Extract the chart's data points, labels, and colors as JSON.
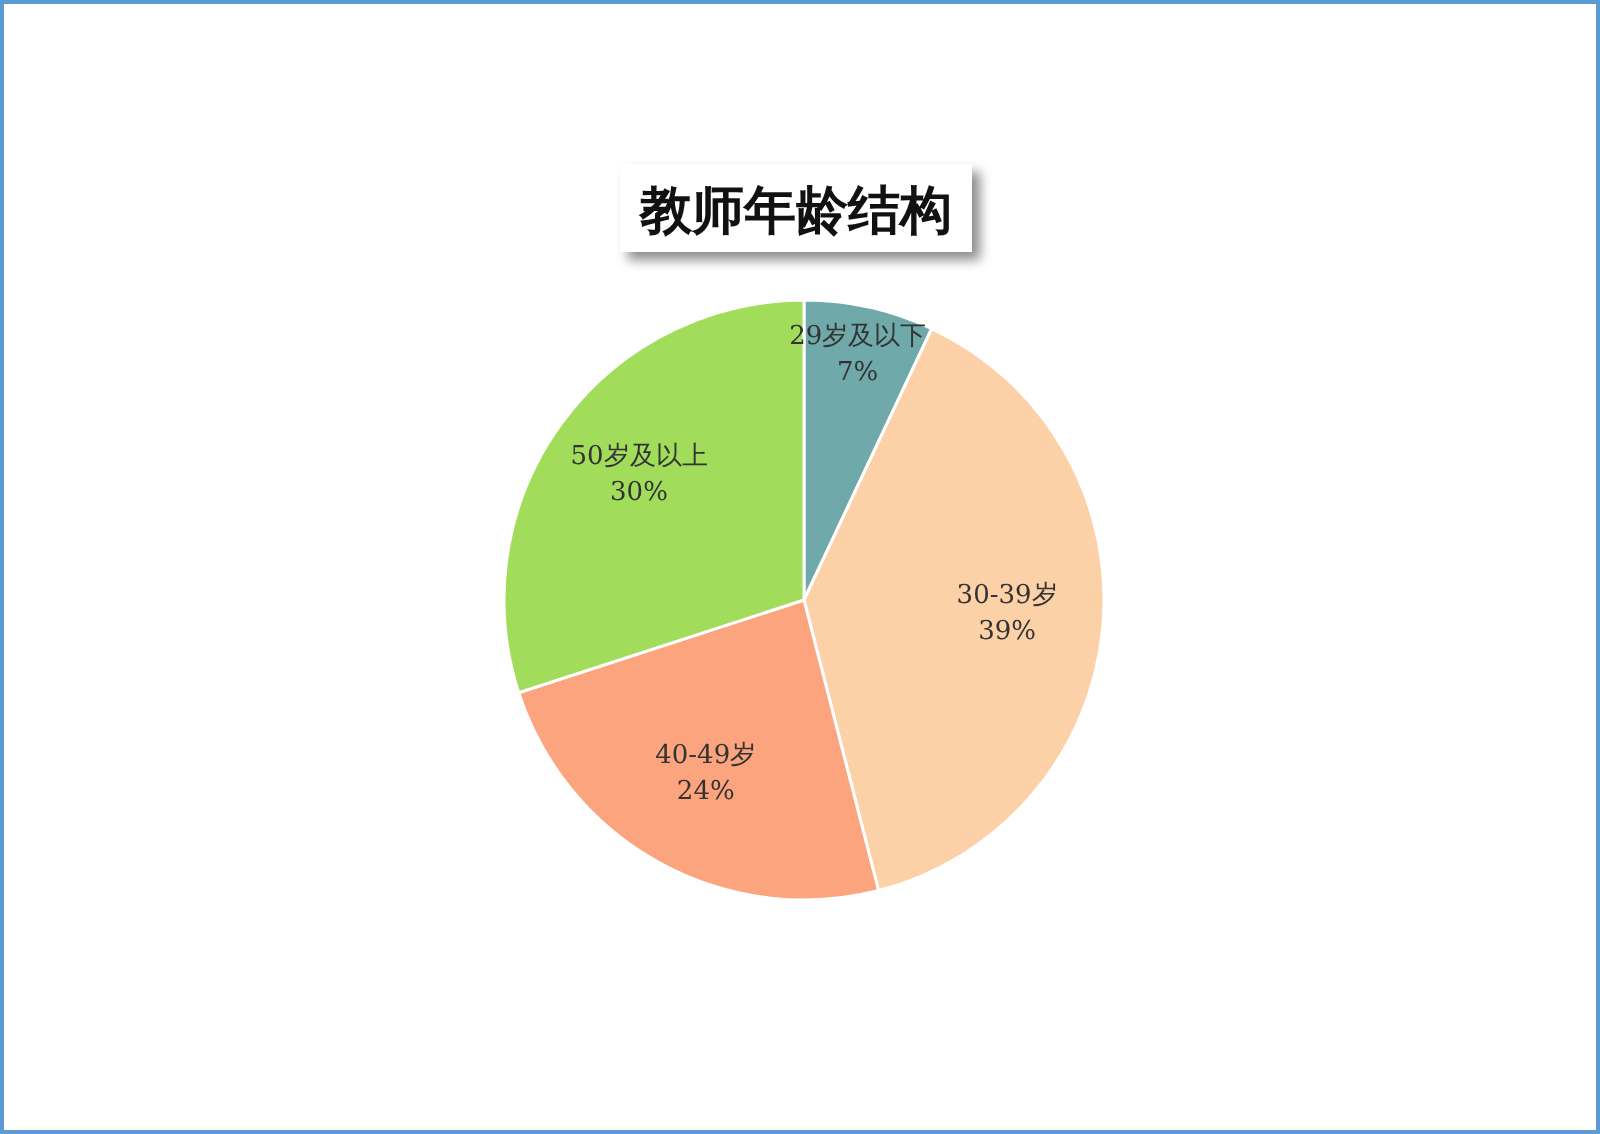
{
  "chart_data": {
    "type": "pie",
    "title": "教师年龄结构",
    "categories": [
      "29岁及以下",
      "30-39岁",
      "40-49岁",
      "50岁及以上"
    ],
    "values": [
      7,
      39,
      24,
      30
    ],
    "colors": [
      "#6fa9a9",
      "#fdd1a7",
      "#fca47e",
      "#a1dd5b"
    ],
    "value_labels": [
      "7%",
      "39%",
      "24%",
      "30%"
    ],
    "legend": false
  }
}
